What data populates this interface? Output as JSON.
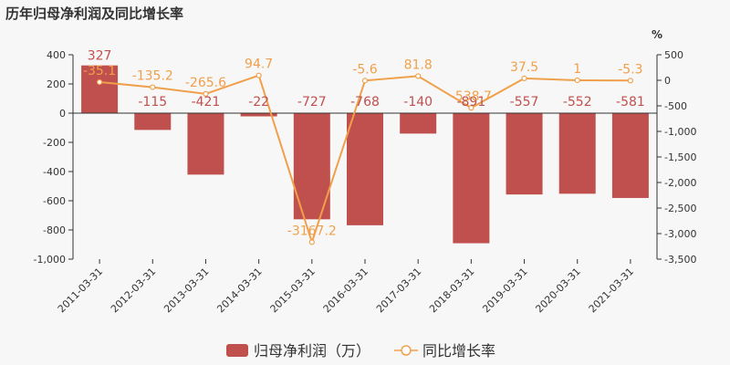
{
  "chart_data": {
    "type": "bar+line",
    "title": "历年归母净利润及同比增长率",
    "categories": [
      "2011-03-31",
      "2012-03-31",
      "2013-03-31",
      "2014-03-31",
      "2015-03-31",
      "2016-03-31",
      "2017-03-31",
      "2018-03-31",
      "2019-03-31",
      "2020-03-31",
      "2021-03-31"
    ],
    "series": [
      {
        "name": "归母净利润（万）",
        "type": "bar",
        "axis": "left",
        "color": "#c0504d",
        "values": [
          327,
          -115,
          -421,
          -22,
          -727,
          -768,
          -140,
          -891,
          -557,
          -552,
          -581
        ],
        "labels": [
          "327",
          "-115",
          "-421",
          "-22",
          "-727",
          "-768",
          "-140",
          "-891",
          "-557",
          "-552",
          "-581"
        ]
      },
      {
        "name": "同比增长率",
        "type": "line",
        "axis": "right",
        "color": "#f0a04b",
        "values": [
          -35.1,
          -135.2,
          -265.6,
          94.7,
          -3167.2,
          -5.6,
          81.8,
          -538.7,
          37.5,
          1,
          -5.3
        ],
        "labels": [
          "-35.1",
          "-135.2",
          "-265.6",
          "94.7",
          "-3167.2",
          "-5.6",
          "81.8",
          "-538.7",
          "37.5",
          "1",
          "-5.3"
        ]
      }
    ],
    "yleft": {
      "min": -1000,
      "max": 400,
      "ticks": [
        400,
        200,
        0,
        -200,
        -400,
        -600,
        -800,
        -1000
      ],
      "tick_labels": [
        "400",
        "200",
        "0",
        "-200",
        "-400",
        "-600",
        "-800",
        "-1,000"
      ]
    },
    "yright": {
      "min": -3500,
      "max": 500,
      "unit": "%",
      "ticks": [
        500,
        0,
        -500,
        -1000,
        -1500,
        -2000,
        -2500,
        -3000,
        -3500
      ],
      "tick_labels": [
        "500",
        "0",
        "-500",
        "-1,000",
        "-1,500",
        "-2,000",
        "-2,500",
        "-3,000",
        "-3,500"
      ]
    },
    "legend": {
      "position": "bottom"
    }
  }
}
